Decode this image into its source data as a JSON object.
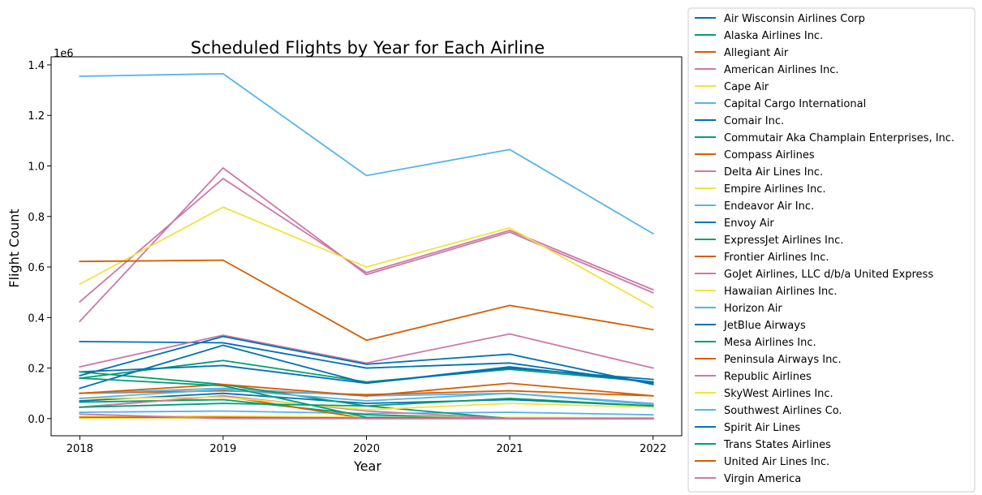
{
  "chart_data": {
    "type": "line",
    "title": "Scheduled Flights by Year for Each Airline",
    "xlabel": "Year",
    "ylabel": "Flight Count",
    "y_offset_label": "1e6",
    "x": [
      "2018",
      "2019",
      "2020",
      "2021",
      "2022"
    ],
    "xlim": [
      2017.8,
      2022.2
    ],
    "ylim": [
      -68000,
      1432000
    ],
    "yticks": [
      0.0,
      0.2,
      0.4,
      0.6,
      0.8,
      1.0,
      1.2,
      1.4
    ],
    "ytick_labels": [
      "0.0",
      "0.2",
      "0.4",
      "0.6",
      "0.8",
      "1.0",
      "1.2",
      "1.4"
    ],
    "grid": false,
    "legend_position": "outside-right",
    "series": [
      {
        "name": "Air Wisconsin Airlines Corp",
        "color": "#0072B2",
        "values": [
          70000,
          100000,
          60000,
          75000,
          50000
        ]
      },
      {
        "name": "Alaska Airlines Inc.",
        "color": "#009E73",
        "values": [
          160000,
          230000,
          145000,
          195000,
          145000
        ]
      },
      {
        "name": "Allegiant Air",
        "color": "#D55E00",
        "values": [
          100000,
          110000,
          95000,
          110000,
          90000
        ]
      },
      {
        "name": "American Airlines Inc.",
        "color": "#CC79A7",
        "values": [
          462000,
          950000,
          578000,
          745000,
          510000
        ]
      },
      {
        "name": "Cape Air",
        "color": "#F0E442",
        "values": [
          2000,
          2000,
          1000,
          1000,
          1000
        ]
      },
      {
        "name": "Capital Cargo International",
        "color": "#56B4E9",
        "values": [
          25000,
          30000,
          20000,
          25000,
          15000
        ]
      },
      {
        "name": "Comair Inc.",
        "color": "#0072B2",
        "values": [
          305000,
          300000,
          200000,
          220000,
          140000
        ]
      },
      {
        "name": "Commutair Aka Champlain Enterprises, Inc.",
        "color": "#009E73",
        "values": [
          65000,
          75000,
          15000,
          0,
          0
        ]
      },
      {
        "name": "Compass Airlines",
        "color": "#D55E00",
        "values": [
          45000,
          90000,
          0,
          0,
          0
        ]
      },
      {
        "name": "Delta Air Lines Inc.",
        "color": "#CC79A7",
        "values": [
          385000,
          992000,
          570000,
          738000,
          498000
        ]
      },
      {
        "name": "Empire Airlines Inc.",
        "color": "#F0E442",
        "values": [
          8000,
          10000,
          5000,
          5000,
          3000
        ]
      },
      {
        "name": "Endeavor Air Inc.",
        "color": "#56B4E9",
        "values": [
          100000,
          120000,
          90000,
          100000,
          60000
        ]
      },
      {
        "name": "Envoy Air",
        "color": "#0072B2",
        "values": [
          185000,
          210000,
          140000,
          205000,
          145000
        ]
      },
      {
        "name": "ExpressJet Airlines Inc.",
        "color": "#009E73",
        "values": [
          185000,
          135000,
          50000,
          0,
          0
        ]
      },
      {
        "name": "Frontier Airlines Inc.",
        "color": "#D55E00",
        "values": [
          100000,
          135000,
          90000,
          140000,
          90000
        ]
      },
      {
        "name": "GoJet Airlines, LLC d/b/a United Express",
        "color": "#CC79A7",
        "values": [
          45000,
          90000,
          30000,
          0,
          0
        ]
      },
      {
        "name": "Hawaiian Airlines Inc.",
        "color": "#F0E442",
        "values": [
          80000,
          85000,
          35000,
          60000,
          45000
        ]
      },
      {
        "name": "Horizon Air",
        "color": "#56B4E9",
        "values": [
          80000,
          115000,
          70000,
          100000,
          55000
        ]
      },
      {
        "name": "JetBlue Airways",
        "color": "#0072B2",
        "values": [
          120000,
          290000,
          140000,
          200000,
          155000
        ]
      },
      {
        "name": "Mesa Airlines Inc.",
        "color": "#009E73",
        "values": [
          45000,
          60000,
          50000,
          80000,
          50000
        ]
      },
      {
        "name": "Peninsula Airways Inc.",
        "color": "#D55E00",
        "values": [
          5000,
          5000,
          2000,
          0,
          0
        ]
      },
      {
        "name": "Republic Airlines",
        "color": "#CC79A7",
        "values": [
          205000,
          330000,
          220000,
          335000,
          200000
        ]
      },
      {
        "name": "SkyWest Airlines Inc.",
        "color": "#F0E442",
        "values": [
          532000,
          837000,
          600000,
          755000,
          440000
        ]
      },
      {
        "name": "Southwest Airlines Co.",
        "color": "#56B4E9",
        "values": [
          1355000,
          1365000,
          962000,
          1065000,
          732000
        ]
      },
      {
        "name": "Spirit Air Lines",
        "color": "#0072B2",
        "values": [
          170000,
          325000,
          215000,
          255000,
          135000
        ]
      },
      {
        "name": "Trans States Airlines",
        "color": "#009E73",
        "values": [
          160000,
          130000,
          5000,
          0,
          0
        ]
      },
      {
        "name": "United Air Lines Inc.",
        "color": "#D55E00",
        "values": [
          622000,
          627000,
          310000,
          448000,
          352000
        ]
      },
      {
        "name": "Virgin America",
        "color": "#CC79A7",
        "values": [
          18000,
          0,
          0,
          0,
          0
        ]
      }
    ]
  }
}
